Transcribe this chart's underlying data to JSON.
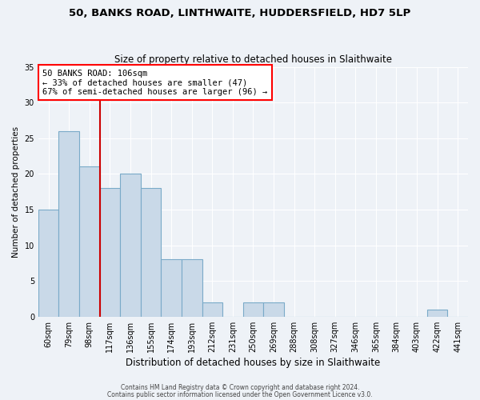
{
  "title1": "50, BANKS ROAD, LINTHWAITE, HUDDERSFIELD, HD7 5LP",
  "title2": "Size of property relative to detached houses in Slaithwaite",
  "xlabel": "Distribution of detached houses by size in Slaithwaite",
  "ylabel": "Number of detached properties",
  "bin_labels": [
    "60sqm",
    "79sqm",
    "98sqm",
    "117sqm",
    "136sqm",
    "155sqm",
    "174sqm",
    "193sqm",
    "212sqm",
    "231sqm",
    "250sqm",
    "269sqm",
    "288sqm",
    "308sqm",
    "327sqm",
    "346sqm",
    "365sqm",
    "384sqm",
    "403sqm",
    "422sqm",
    "441sqm"
  ],
  "bin_values": [
    15,
    26,
    21,
    18,
    20,
    18,
    8,
    8,
    2,
    0,
    2,
    2,
    0,
    0,
    0,
    0,
    0,
    0,
    0,
    1,
    0
  ],
  "bar_color": "#c9d9e8",
  "bar_edge_color": "#7aaac8",
  "annotation_text": "50 BANKS ROAD: 106sqm\n← 33% of detached houses are smaller (47)\n67% of semi-detached houses are larger (96) →",
  "annotation_box_color": "white",
  "annotation_box_edge_color": "red",
  "vline_color": "#cc0000",
  "ylim": [
    0,
    35
  ],
  "yticks": [
    0,
    5,
    10,
    15,
    20,
    25,
    30,
    35
  ],
  "footer1": "Contains HM Land Registry data © Crown copyright and database right 2024.",
  "footer2": "Contains public sector information licensed under the Open Government Licence v3.0.",
  "bg_color": "#eef2f7",
  "plot_bg_color": "#eef2f7",
  "grid_color": "white",
  "title1_fontsize": 9.5,
  "title2_fontsize": 8.5,
  "xlabel_fontsize": 8.5,
  "ylabel_fontsize": 7.5,
  "tick_fontsize": 7.0,
  "annotation_fontsize": 7.5,
  "footer_fontsize": 5.5,
  "vline_x": 2.5
}
